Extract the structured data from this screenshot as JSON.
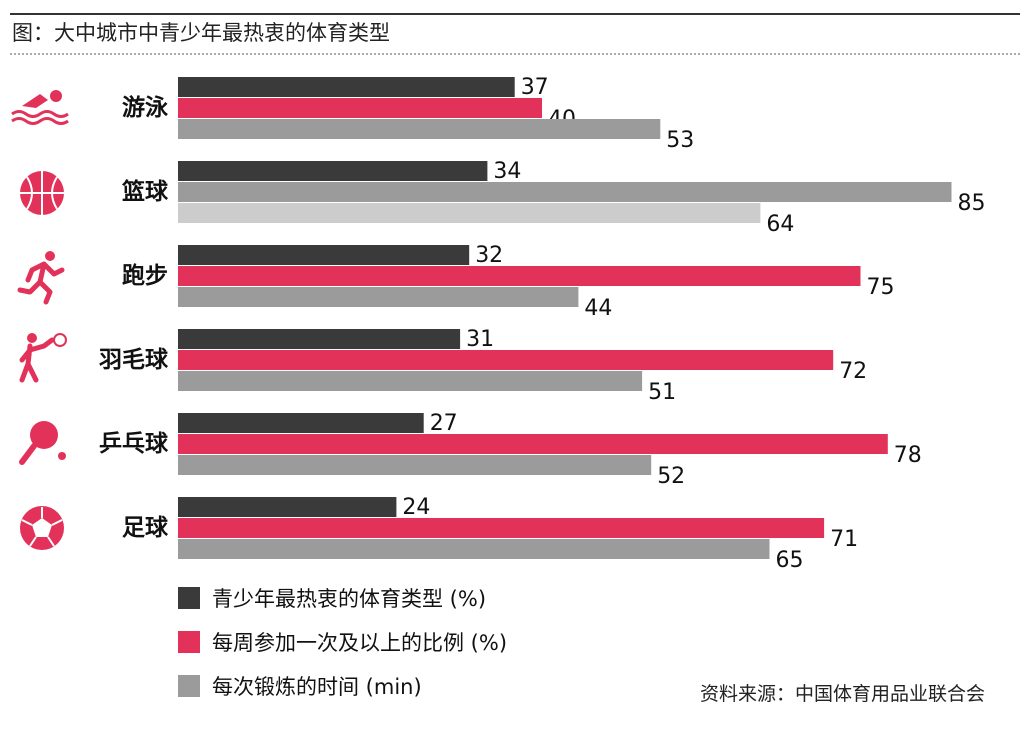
{
  "chart_data": {
    "type": "bar",
    "orientation": "horizontal",
    "title": "图：大中城市中青少年最热衷的体育类型",
    "categories": [
      "游泳",
      "篮球",
      "跑步",
      "羽毛球",
      "乒乓球",
      "足球"
    ],
    "icons": [
      "swimming-icon",
      "basketball-icon",
      "running-icon",
      "badminton-icon",
      "table-tennis-icon",
      "football-icon"
    ],
    "series": [
      {
        "name": "青少年最热衷的体育类型 (%)",
        "color": "#3a3a3a",
        "values": [
          37,
          34,
          32,
          31,
          27,
          24
        ]
      },
      {
        "name": "每周参加一次及以上的比例 (%)",
        "color": "#e3325a",
        "values": [
          40,
          null,
          75,
          72,
          78,
          71
        ]
      },
      {
        "name": "每次锻炼的时间 (min)",
        "color": "#9b9b9b",
        "values": [
          53,
          85,
          44,
          51,
          52,
          65
        ]
      }
    ],
    "basketball_extra_bar": {
      "value": 64,
      "color": "#cccccc"
    },
    "basketball_time_bar_color": "#9b9b9b",
    "legend_position": "bottom-left",
    "grid": false,
    "source": "资料来源：中国体育用品业联合会",
    "icon_color": "#e3325a"
  }
}
